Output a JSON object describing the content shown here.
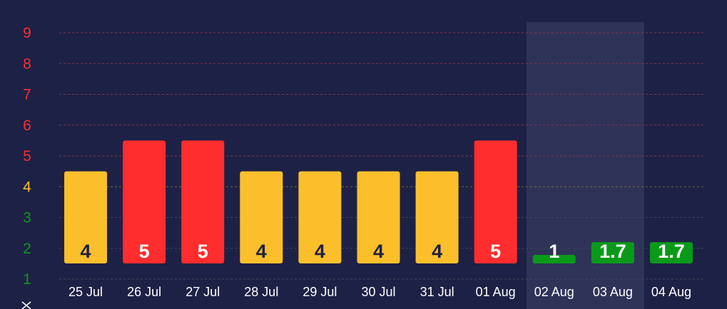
{
  "chart_data": {
    "type": "bar",
    "categories": [
      "25 Jul",
      "26 Jul",
      "27 Jul",
      "28 Jul",
      "29 Jul",
      "30 Jul",
      "31 Jul",
      "01 Aug",
      "02 Aug",
      "03 Aug",
      "04 Aug"
    ],
    "values": [
      4,
      5,
      5,
      4,
      4,
      4,
      4,
      5,
      1,
      1.7,
      1.7
    ],
    "value_labels": [
      "4",
      "5",
      "5",
      "4",
      "4",
      "4",
      "4",
      "5",
      "1",
      "1.7",
      "1.7"
    ],
    "bar_colors": [
      "#fbbf2c",
      "#ff2d2d",
      "#ff2d2d",
      "#fbbf2c",
      "#fbbf2c",
      "#fbbf2c",
      "#fbbf2c",
      "#ff2d2d",
      "#0a9a1a",
      "#0a9a1a",
      "#0a9a1a"
    ],
    "value_label_colors": [
      "#1d2145",
      "#ffffff",
      "#ffffff",
      "#1d2145",
      "#1d2145",
      "#1d2145",
      "#1d2145",
      "#ffffff",
      "#ffffff",
      "#ffffff",
      "#ffffff"
    ],
    "y_ticks": [
      "9",
      "8",
      "7",
      "6",
      "5",
      "4",
      "3",
      "2",
      "1"
    ],
    "y_tick_values": [
      9,
      8,
      7,
      6,
      5,
      4,
      3,
      2,
      1
    ],
    "y_tick_colors": [
      "#ff2d2d",
      "#ff2d2d",
      "#ff2d2d",
      "#ff2d2d",
      "#ff2d2d",
      "#fbbf2c",
      "#0a9a1a",
      "#0a9a1a",
      "#0a9a1a"
    ],
    "ylim": [
      0.5,
      9.5
    ],
    "bar_base": 0.5,
    "highlighted_range": [
      "02 Aug",
      "03 Aug"
    ],
    "grid": true,
    "legend": "none",
    "title": "",
    "xlabel": "",
    "ylabel": ""
  },
  "colors": {
    "background": "#1d2145",
    "highlight_band": "#2f3358",
    "grid_red": "#8a3347",
    "grid_yellow": "#7a6a3a",
    "grid_green": "#3a4a5a"
  },
  "icons": {
    "bottom_left": "close-icon"
  }
}
